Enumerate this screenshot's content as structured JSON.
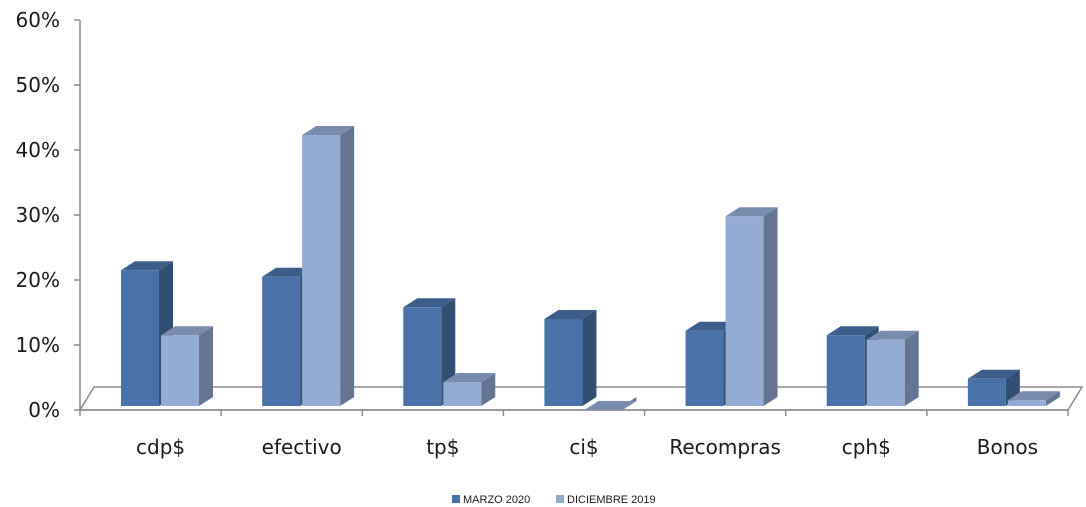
{
  "chart_data": {
    "type": "bar",
    "categories": [
      "cdp$",
      "efectivo",
      "tp$",
      "ci$",
      "Recompras",
      "cph$",
      "Bonos"
    ],
    "series": [
      {
        "name": "MARZO 2020",
        "values": [
          21.5,
          20.5,
          15.8,
          14.0,
          12.2,
          11.5,
          4.8
        ],
        "color": "#4a72a8"
      },
      {
        "name": "DICIEMBRE 2019",
        "values": [
          11.5,
          42.3,
          4.3,
          0.0,
          29.8,
          10.8,
          1.5
        ],
        "color": "#94abd4"
      }
    ],
    "y_ticks": [
      "0%",
      "10%",
      "20%",
      "30%",
      "40%",
      "50%",
      "60%"
    ],
    "ylim": [
      0,
      60
    ],
    "grid": false,
    "legend_position": "bottom",
    "style": "3d-clustered-column"
  }
}
